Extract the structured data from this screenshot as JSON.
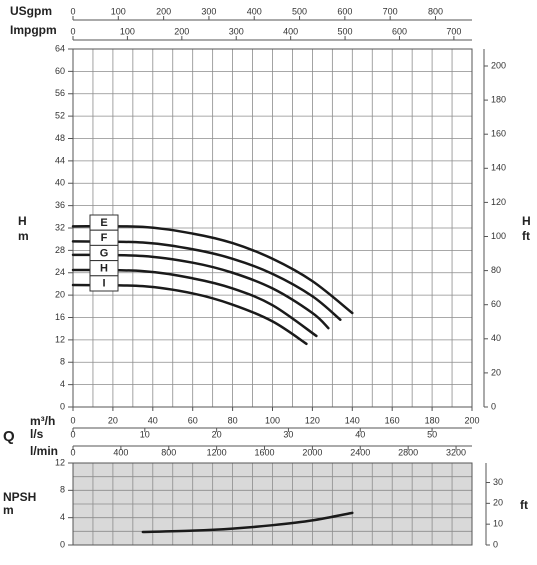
{
  "chart_data": [
    {
      "type": "line",
      "xlabel": "Q",
      "xunit": "m³/h",
      "ylabel": "H",
      "yunit": "m",
      "y2label": "H",
      "y2unit": "ft",
      "xlim": [
        0,
        200
      ],
      "xticks": [
        0,
        20,
        40,
        60,
        80,
        100,
        120,
        140,
        160,
        180,
        200
      ],
      "ylim": [
        0,
        64
      ],
      "yticks": [
        0,
        4,
        8,
        12,
        16,
        20,
        24,
        28,
        32,
        36,
        40,
        44,
        48,
        52,
        56,
        60,
        64
      ],
      "y2lim": [
        0,
        209.97
      ],
      "y2ticks": [
        0,
        20,
        40,
        60,
        80,
        100,
        120,
        140,
        160,
        180,
        200
      ],
      "grid": true,
      "top_axes": [
        {
          "label": "USgpm",
          "lim": [
            0,
            880.6
          ],
          "ticks": [
            0,
            100,
            200,
            300,
            400,
            500,
            600,
            700,
            800
          ]
        },
        {
          "label": "Impgpm",
          "lim": [
            0,
            733.3
          ],
          "ticks": [
            0,
            100,
            200,
            300,
            400,
            500,
            600,
            700
          ]
        }
      ],
      "bottom_axes": [
        {
          "label": "l/s",
          "lim": [
            0,
            55.56
          ],
          "ticks": [
            0,
            10,
            20,
            30,
            40,
            50
          ]
        },
        {
          "label": "l/min",
          "lim": [
            0,
            3333.3
          ],
          "ticks": [
            0,
            400,
            800,
            1200,
            1600,
            2000,
            2400,
            2800,
            3200
          ]
        }
      ],
      "series": [
        {
          "name": "E",
          "color": "#1a1a1a",
          "x": [
            0,
            35,
            60,
            80,
            100,
            120,
            140
          ],
          "values": [
            32.3,
            32.2,
            31.0,
            29.3,
            26.5,
            22.5,
            16.8
          ]
        },
        {
          "name": "F",
          "color": "#1a1a1a",
          "x": [
            0,
            35,
            60,
            80,
            100,
            120,
            134
          ],
          "values": [
            29.6,
            29.4,
            28.2,
            26.5,
            23.8,
            19.8,
            15.6
          ]
        },
        {
          "name": "G",
          "color": "#1a1a1a",
          "x": [
            0,
            35,
            60,
            80,
            100,
            120,
            128
          ],
          "values": [
            27.2,
            27.0,
            25.8,
            24.0,
            21.2,
            16.8,
            14.1
          ]
        },
        {
          "name": "H",
          "color": "#1a1a1a",
          "x": [
            0,
            35,
            60,
            80,
            100,
            122
          ],
          "values": [
            24.5,
            24.3,
            23.0,
            21.2,
            18.2,
            12.7
          ]
        },
        {
          "name": "I",
          "color": "#1a1a1a",
          "x": [
            0,
            35,
            60,
            80,
            100,
            117
          ],
          "values": [
            21.8,
            21.6,
            20.3,
            18.3,
            15.3,
            11.3
          ]
        }
      ]
    },
    {
      "type": "line",
      "ylabel": "NPSH",
      "yunit": "m",
      "y2unit": "ft",
      "xlim": [
        0,
        200
      ],
      "xticks": [
        0,
        20,
        40,
        60,
        80,
        100,
        120,
        140,
        160,
        180,
        200
      ],
      "ylim": [
        0,
        12
      ],
      "yticks": [
        0,
        4,
        8,
        12
      ],
      "y2lim": [
        0,
        39.37
      ],
      "y2ticks": [
        0,
        10,
        20,
        30
      ],
      "grid": true,
      "series": [
        {
          "color": "#1a1a1a",
          "x": [
            35,
            60,
            80,
            100,
            120,
            140
          ],
          "values": [
            1.9,
            2.1,
            2.4,
            2.9,
            3.6,
            4.7
          ]
        }
      ]
    }
  ]
}
